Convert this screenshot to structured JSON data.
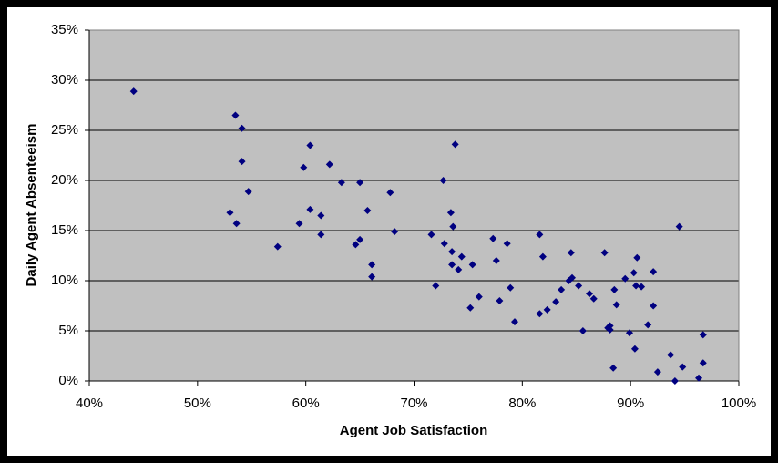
{
  "chart_data": {
    "type": "scatter",
    "x_label": "Agent Job Satisfaction",
    "y_label": "Daily Agent Absenteeism",
    "color": "#000080",
    "plot_background": "#c0c0c0",
    "grid": true,
    "xlim": [
      40,
      100
    ],
    "xticks": [
      {
        "value": 40,
        "label": "40%"
      },
      {
        "value": 50,
        "label": "50%"
      },
      {
        "value": 60,
        "label": "60%"
      },
      {
        "value": 70,
        "label": "70%"
      },
      {
        "value": 80,
        "label": "80%"
      },
      {
        "value": 90,
        "label": "90%"
      },
      {
        "value": 100,
        "label": "100%"
      }
    ],
    "ylim": [
      0,
      35
    ],
    "yticks": [
      {
        "value": 0,
        "label": "0%"
      },
      {
        "value": 5,
        "label": "5%"
      },
      {
        "value": 10,
        "label": "10%"
      },
      {
        "value": 15,
        "label": "15%"
      },
      {
        "value": 20,
        "label": "20%"
      },
      {
        "value": 25,
        "label": "25%"
      },
      {
        "value": 30,
        "label": "30%"
      },
      {
        "value": 35,
        "label": "35%"
      }
    ],
    "x": [
      44.1,
      53.5,
      54.1,
      54.1,
      54.7,
      53.0,
      53.6,
      57.4,
      60.4,
      59.8,
      60.4,
      61.4,
      61.4,
      59.4,
      62.2,
      63.3,
      65.0,
      65.7,
      65.0,
      64.6,
      66.1,
      66.1,
      67.8,
      68.2,
      73.8,
      72.7,
      73.4,
      73.6,
      71.6,
      72.8,
      73.5,
      74.4,
      73.5,
      74.1,
      75.4,
      72.0,
      75.2,
      76.0,
      77.3,
      77.6,
      78.6,
      78.9,
      77.9,
      79.3,
      81.6,
      81.9,
      81.6,
      82.3,
      83.1,
      83.6,
      84.3,
      84.6,
      84.5,
      85.2,
      85.6,
      86.2,
      86.6,
      87.6,
      87.9,
      88.1,
      88.1,
      88.5,
      88.7,
      88.4,
      89.5,
      89.9,
      90.3,
      90.6,
      90.5,
      91.0,
      90.4,
      91.6,
      92.1,
      92.1,
      92.5,
      93.7,
      94.1,
      94.5,
      94.8,
      96.3,
      96.7,
      96.7
    ],
    "values": [
      28.9,
      26.5,
      25.2,
      21.9,
      18.9,
      16.8,
      15.7,
      13.4,
      23.5,
      21.3,
      17.1,
      16.5,
      14.6,
      15.7,
      21.6,
      19.8,
      19.8,
      17.0,
      14.1,
      13.6,
      11.6,
      10.4,
      18.8,
      14.9,
      23.6,
      20.0,
      16.8,
      15.4,
      14.6,
      13.7,
      12.9,
      12.4,
      11.6,
      11.1,
      11.6,
      9.5,
      7.3,
      8.4,
      14.2,
      12.0,
      13.7,
      9.3,
      8.0,
      5.9,
      14.6,
      12.4,
      6.7,
      7.1,
      7.9,
      9.1,
      10.0,
      10.3,
      12.8,
      9.5,
      5.0,
      8.7,
      8.2,
      12.8,
      5.3,
      5.1,
      5.5,
      9.1,
      7.6,
      1.3,
      10.2,
      4.8,
      10.8,
      12.3,
      9.5,
      9.4,
      3.2,
      5.6,
      7.5,
      10.9,
      0.9,
      2.6,
      0.0,
      15.4,
      1.4,
      0.3,
      4.6,
      1.8
    ]
  }
}
